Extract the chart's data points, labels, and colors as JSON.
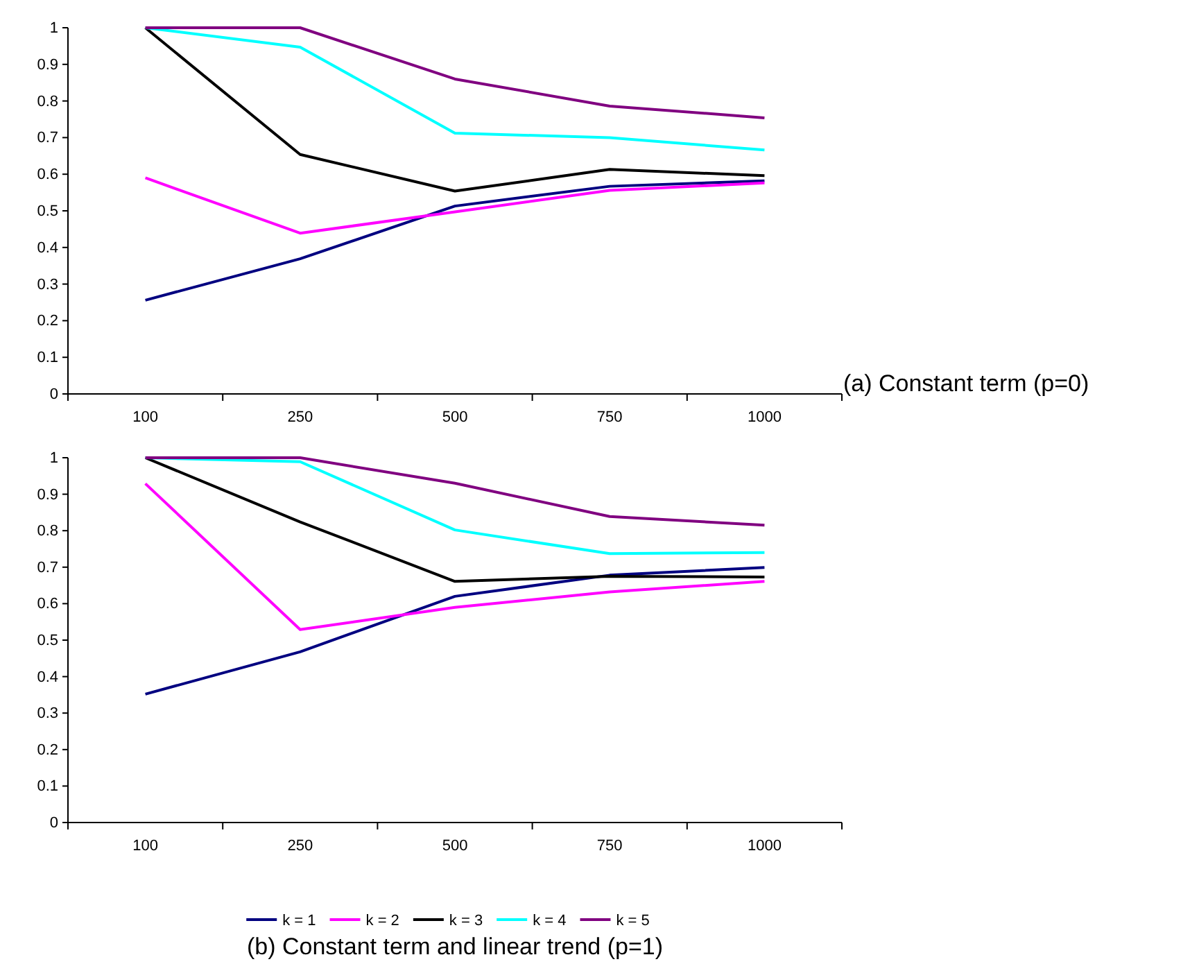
{
  "chart_data": [
    {
      "type": "line",
      "annotations": [
        "(a) Constant term (p=0)"
      ],
      "categories": [
        "100",
        "250",
        "500",
        "750",
        "1000"
      ],
      "ylim": [
        0,
        1
      ],
      "yticks": [
        0,
        0.1,
        0.2,
        0.3,
        0.4,
        0.5,
        0.6,
        0.7,
        0.8,
        0.9,
        1
      ],
      "grid": false,
      "legend": false,
      "marker": "none",
      "line_style": "solid",
      "series": [
        {
          "color": "#000080",
          "values": [
            0.256,
            0.369,
            0.513,
            0.567,
            0.582
          ]
        },
        {
          "color": "#ff00ff",
          "values": [
            0.59,
            0.439,
            0.497,
            0.556,
            0.576
          ]
        },
        {
          "color": "#000000",
          "values": [
            1,
            0.654,
            0.554,
            0.613,
            0.596
          ]
        },
        {
          "color": "#00ffff",
          "values": [
            1,
            0.947,
            0.712,
            0.7,
            0.666
          ]
        },
        {
          "color": "#800080",
          "values": [
            1,
            1,
            0.86,
            0.786,
            0.754
          ]
        }
      ]
    },
    {
      "type": "line",
      "annotations": [
        "(b) Constant term and linear trend (p=1)"
      ],
      "categories": [
        "100",
        "250",
        "500",
        "750",
        "1000"
      ],
      "ylim": [
        0,
        1
      ],
      "yticks": [
        0,
        0.1,
        0.2,
        0.3,
        0.4,
        0.5,
        0.6,
        0.7,
        0.8,
        0.9,
        1
      ],
      "grid": false,
      "legend": "bottom",
      "marker": "none",
      "line_style": "solid",
      "series": [
        {
          "name": "k = 1",
          "color": "#000080",
          "values": [
            0.352,
            0.468,
            0.62,
            0.678,
            0.699
          ]
        },
        {
          "name": "k = 2",
          "color": "#ff00ff",
          "values": [
            0.929,
            0.529,
            0.59,
            0.632,
            0.661
          ]
        },
        {
          "name": "k = 3",
          "color": "#000000",
          "values": [
            1,
            0.824,
            0.661,
            0.675,
            0.673
          ]
        },
        {
          "name": "k = 4",
          "color": "#00ffff",
          "values": [
            1,
            0.989,
            0.802,
            0.737,
            0.74
          ]
        },
        {
          "name": "k = 5",
          "color": "#800080",
          "values": [
            1,
            1,
            0.93,
            0.839,
            0.815
          ]
        }
      ]
    }
  ]
}
